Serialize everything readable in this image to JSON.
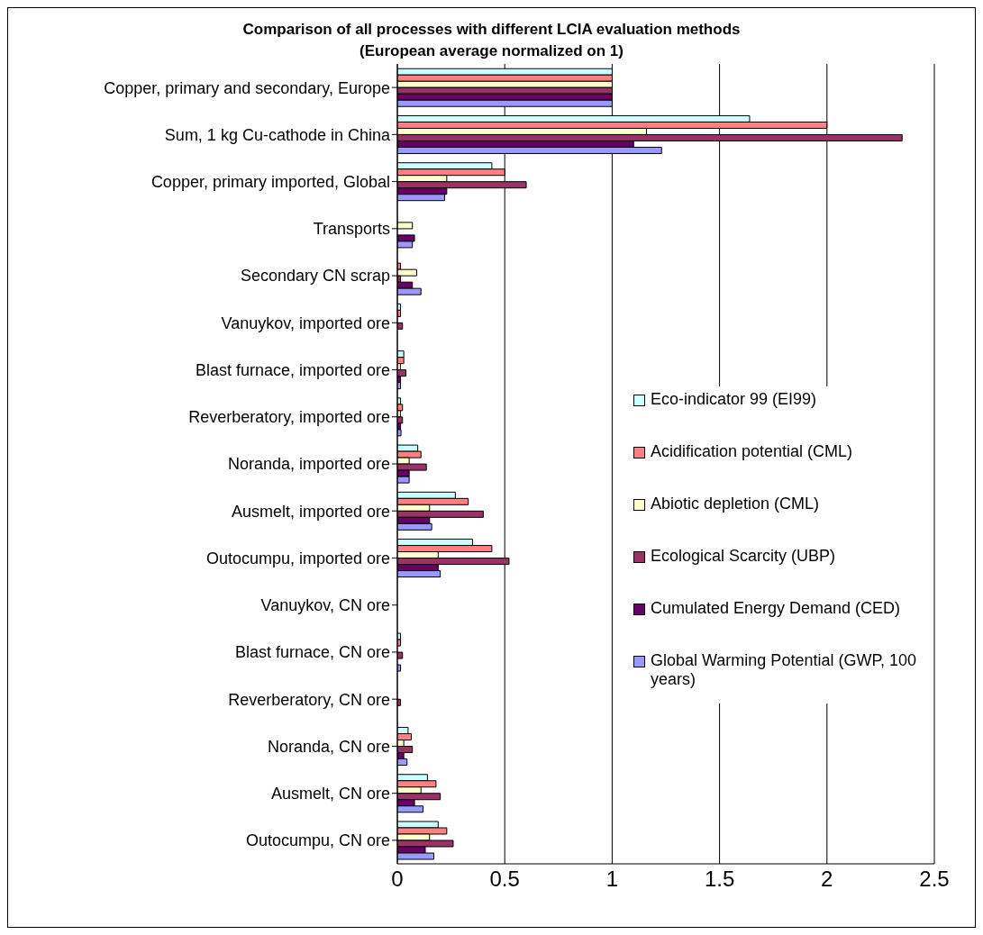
{
  "chart_data": {
    "type": "bar",
    "orientation": "horizontal",
    "title": "Comparison of all processes with different LCIA evaluation methods",
    "subtitle": "(European average normalized on 1)",
    "categories": [
      "Copper, primary and secondary, Europe",
      "Sum, 1 kg Cu-cathode in China",
      "Copper, primary imported, Global",
      "Transports",
      "Secondary CN scrap",
      "Vanuykov, imported ore",
      "Blast furnace, imported ore",
      "Reverberatory, imported ore",
      "Noranda, imported ore",
      "Ausmelt, imported ore",
      "Outocumpu, imported ore",
      "Vanuykov, CN ore",
      "Blast furnace, CN ore",
      "Reverberatory, CN ore",
      "Noranda, CN ore",
      "Ausmelt, CN ore",
      "Outocumpu, CN ore"
    ],
    "series": [
      {
        "name": "Eco-indicator 99 (EI99)",
        "color": "#ccffff",
        "values": [
          1,
          1.64,
          0.44,
          0,
          0,
          0.015,
          0.03,
          0.015,
          0.095,
          0.27,
          0.35,
          0,
          0.015,
          0,
          0.05,
          0.14,
          0.19
        ]
      },
      {
        "name": "Acidification potential (CML)",
        "color": "#ff8080",
        "values": [
          1,
          2.0,
          0.5,
          0,
          0.015,
          0.015,
          0.03,
          0.024,
          0.11,
          0.33,
          0.44,
          0,
          0.015,
          0,
          0.065,
          0.18,
          0.23
        ]
      },
      {
        "name": "Abiotic depletion (CML)",
        "color": "#ffffcc",
        "values": [
          1,
          1.16,
          0.23,
          0.07,
          0.09,
          0,
          0.014,
          0.014,
          0.055,
          0.15,
          0.19,
          0,
          null,
          0,
          0.03,
          0.11,
          0.15
        ]
      },
      {
        "name": "Ecological Scarcity (UBP)",
        "color": "#993366",
        "values": [
          1,
          2.35,
          0.6,
          0,
          0.015,
          0.024,
          0.04,
          0.024,
          0.135,
          0.4,
          0.52,
          0,
          0.024,
          0.015,
          0.07,
          0.2,
          0.26
        ]
      },
      {
        "name": "Cumulated Energy Demand (CED)",
        "color": "#660066",
        "values": [
          1,
          1.1,
          0.23,
          0.08,
          0.07,
          0,
          0.015,
          0.015,
          0.055,
          0.15,
          0.19,
          0,
          0,
          0,
          0.03,
          0.08,
          0.13
        ]
      },
      {
        "name": "Global Warming Potential (GWP, 100 years)",
        "color": "#9999ff",
        "values": [
          1,
          1.23,
          0.22,
          0.07,
          0.11,
          0,
          0.015,
          0.017,
          0.055,
          0.16,
          0.2,
          0,
          0.015,
          0,
          0.045,
          0.12,
          0.17
        ]
      }
    ],
    "xlim": [
      0,
      2.5
    ],
    "xticks": [
      0,
      0.5,
      1,
      1.5,
      2,
      2.5
    ],
    "grid": "x",
    "legend": "right"
  }
}
